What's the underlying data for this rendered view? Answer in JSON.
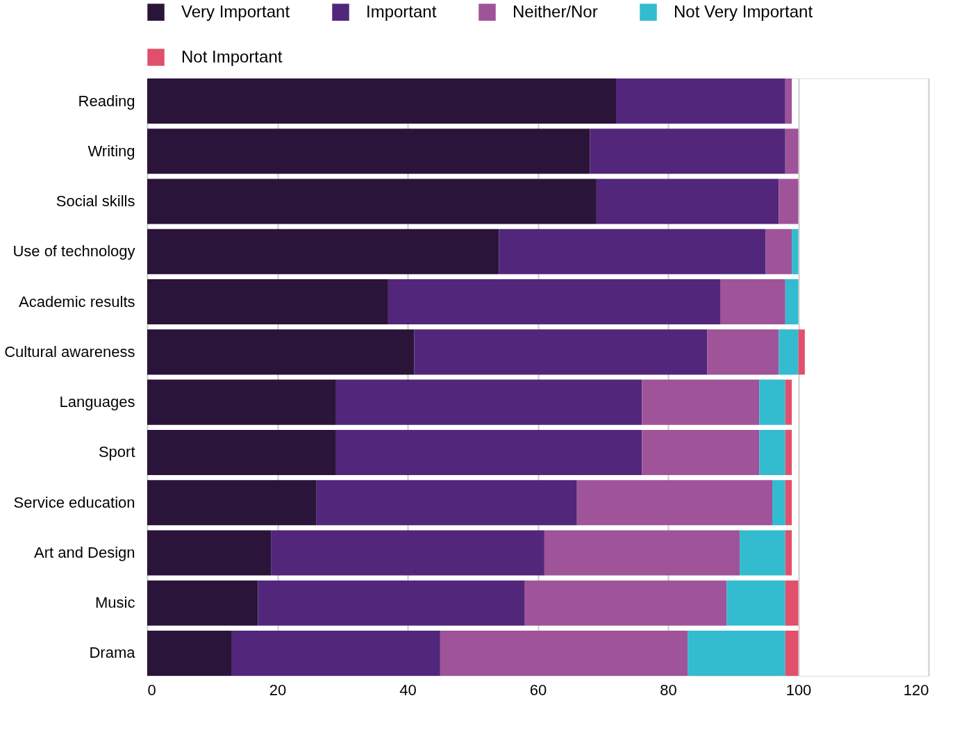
{
  "chart_data": {
    "type": "bar",
    "orientation": "horizontal",
    "stacked": true,
    "categories": [
      "Reading",
      "Writing",
      "Social skills",
      "Use of technology",
      "Academic results",
      "Cultural awareness",
      "Languages",
      "Sport",
      "Service education",
      "Art and Design",
      "Music",
      "Drama"
    ],
    "series": [
      {
        "name": "Very Important",
        "color": "#2a1439",
        "values": [
          72,
          68,
          69,
          54,
          37,
          41,
          29,
          29,
          26,
          19,
          17,
          13
        ]
      },
      {
        "name": "Important",
        "color": "#52267a",
        "values": [
          26,
          30,
          28,
          41,
          51,
          45,
          47,
          47,
          40,
          42,
          41,
          32
        ]
      },
      {
        "name": "Neither/Nor",
        "color": "#9f5399",
        "values": [
          1,
          2,
          3,
          4,
          10,
          11,
          18,
          18,
          30,
          30,
          31,
          38
        ]
      },
      {
        "name": "Not Very Important",
        "color": "#33bbcf",
        "values": [
          null,
          null,
          null,
          1,
          2,
          3,
          4,
          4,
          2,
          7,
          9,
          15
        ]
      },
      {
        "name": "Not Important",
        "color": "#e0506b",
        "values": [
          null,
          null,
          null,
          null,
          null,
          1,
          1,
          1,
          1,
          1,
          2,
          2
        ]
      }
    ],
    "xlim": [
      0,
      120
    ],
    "xticks": [
      0,
      20,
      40,
      60,
      80,
      100,
      120
    ],
    "grid": "x",
    "legend": "top"
  }
}
